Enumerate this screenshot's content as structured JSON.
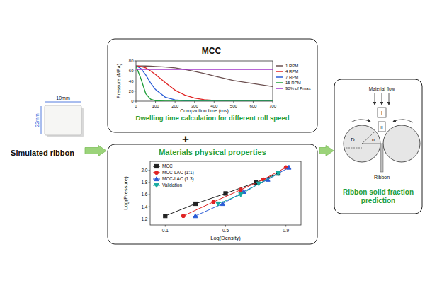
{
  "ribbon": {
    "label": "Simulated ribbon",
    "width": "10mm",
    "length": "22mm"
  },
  "top_panel": {
    "caption": "Dwelling time calculation for different roll speed"
  },
  "plus": "+",
  "bottom_panel": {
    "title": "Materials physical properties"
  },
  "right_panel": {
    "caption": "Ribbon solid fraction prediction",
    "material_flow": "Material flow",
    "diameter": "D",
    "angle": "α",
    "zone_1": "I",
    "zone_2": "II",
    "ribbon": "Ribbon"
  },
  "chart_data": [
    {
      "type": "line",
      "title": "MCC",
      "x_label": "Compaction time (ms)",
      "y_label": "Pressure (MPa)",
      "x": [
        0,
        25,
        50,
        75,
        100,
        150,
        200,
        250,
        300,
        350,
        400,
        500,
        600,
        700
      ],
      "xlim": [
        0,
        700
      ],
      "xticks": [
        0,
        100,
        200,
        300,
        400,
        500,
        600,
        700
      ],
      "ylim": [
        0,
        80
      ],
      "yticks": [
        0,
        20,
        40,
        60,
        80
      ],
      "legend": "right",
      "series": [
        {
          "name": "1 RPM",
          "color": "#6b4f4f",
          "values": [
            70,
            70,
            69.8,
            69.5,
            69,
            68,
            66,
            63,
            59,
            55,
            50,
            41,
            35,
            29
          ]
        },
        {
          "name": "4 RPM",
          "color": "#e02424",
          "values": [
            70,
            69,
            66,
            60,
            53,
            37,
            22,
            12,
            6,
            3,
            1.5,
            0.5,
            0,
            0
          ]
        },
        {
          "name": "7 RPM",
          "color": "#2a5cd6",
          "values": [
            70,
            65,
            52,
            36,
            23,
            8,
            2.5,
            1,
            0.3,
            0,
            0,
            0,
            0,
            0
          ]
        },
        {
          "name": "15 RPM",
          "color": "#1f9e3a",
          "values": [
            70,
            45,
            15,
            4,
            1,
            0,
            0,
            0,
            0,
            0,
            0,
            0,
            0,
            0
          ]
        },
        {
          "name": "90% of Pmax",
          "color": "#a235c9",
          "values": [
            63,
            63,
            63,
            63,
            63,
            63,
            63,
            63,
            63,
            63,
            63,
            63,
            63,
            63
          ]
        }
      ]
    },
    {
      "type": "scatter",
      "x_label": "Log(Density)",
      "y_label": "Log(Pressure)",
      "xlim": [
        0,
        1
      ],
      "xticks": [
        0.1,
        0.5,
        0.9
      ],
      "ylim": [
        1.1,
        2.15
      ],
      "yticks": [
        1.2,
        1.4,
        1.6,
        1.8,
        {
          "value": 2,
          "label": "2.0"
        }
      ],
      "legend": "upper left",
      "series": [
        {
          "name": "MCC",
          "color": "#222222",
          "marker": "square",
          "line_style": "solid",
          "x": [
            0.1,
            0.3,
            0.5,
            0.7,
            0.85
          ],
          "values": [
            1.25,
            1.45,
            1.62,
            1.8,
            1.95
          ]
        },
        {
          "name": "MCC-LAC (1:1)",
          "color": "#e02424",
          "marker": "circle",
          "line_style": "solid",
          "x": [
            0.22,
            0.42,
            0.6,
            0.75,
            0.9
          ],
          "values": [
            1.25,
            1.48,
            1.68,
            1.85,
            2.05
          ]
        },
        {
          "name": "MCC-LAC (1:3)",
          "color": "#2a5cd6",
          "marker": "triangle",
          "line_style": "solid",
          "x": [
            0.3,
            0.48,
            0.62,
            0.78,
            0.92
          ],
          "values": [
            1.25,
            1.45,
            1.65,
            1.85,
            2.05
          ]
        },
        {
          "name": "Validation",
          "color": "#17a9a0",
          "marker": "triangle-down",
          "line_style": "solid",
          "x": [
            0.45,
            0.6,
            0.72,
            0.85
          ],
          "values": [
            1.45,
            1.6,
            1.78,
            1.95
          ]
        }
      ]
    }
  ]
}
